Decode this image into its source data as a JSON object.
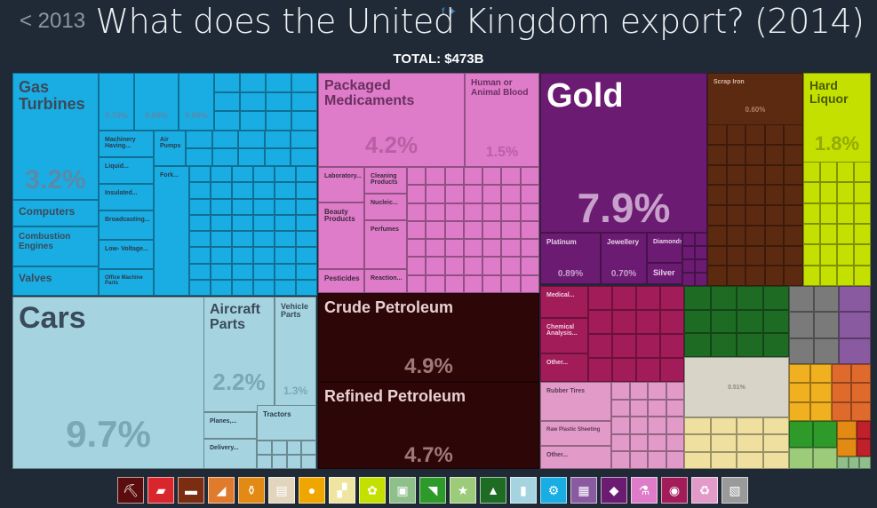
{
  "header": {
    "back_label": "< 2013",
    "title": "What does the United Kingdom export? (2014)",
    "total": "TOTAL: $473B"
  },
  "chart_data": {
    "type": "treemap",
    "total": "$473B",
    "tiles": [
      {
        "label": "Gas Turbines",
        "value": "3.2%",
        "color": "#1aade3"
      },
      {
        "label": "Computers",
        "value": "",
        "color": "#1aade3"
      },
      {
        "label": "Combustion Engines",
        "value": "",
        "color": "#1aade3"
      },
      {
        "label": "Valves",
        "value": "",
        "color": "#1aade3"
      },
      {
        "label": "Machinery Having...",
        "value": "",
        "color": "#1aade3"
      },
      {
        "label": "Air Pumps",
        "value": "",
        "color": "#1aade3"
      },
      {
        "label": "Liquid...",
        "value": "",
        "color": "#1aade3"
      },
      {
        "label": "Insulated...",
        "value": "",
        "color": "#1aade3"
      },
      {
        "label": "Broadcasting...",
        "value": "",
        "color": "#1aade3"
      },
      {
        "label": "Fork...",
        "value": "",
        "color": "#1aade3"
      },
      {
        "label": "Low- Voltage...",
        "value": "",
        "color": "#1aade3"
      },
      {
        "label": "Office Machine Parts",
        "value": "",
        "color": "#1aade3"
      },
      {
        "label": "",
        "value": "0.70%",
        "color": "#1aade3"
      },
      {
        "label": "",
        "value": "0.65%",
        "color": "#1aade3"
      },
      {
        "label": "",
        "value": "0.59%",
        "color": "#1aade3"
      },
      {
        "label": "Cars",
        "value": "9.7%",
        "color": "#a5d4e0"
      },
      {
        "label": "Aircraft Parts",
        "value": "2.2%",
        "color": "#a5d4e0"
      },
      {
        "label": "Vehicle Parts",
        "value": "1.3%",
        "color": "#a5d4e0"
      },
      {
        "label": "Planes,...",
        "value": "",
        "color": "#a5d4e0"
      },
      {
        "label": "Tractors",
        "value": "",
        "color": "#a5d4e0"
      },
      {
        "label": "Delivery...",
        "value": "",
        "color": "#a5d4e0"
      },
      {
        "label": "Packaged Medicaments",
        "value": "4.2%",
        "color": "#df7cca"
      },
      {
        "label": "Human or Animal Blood",
        "value": "1.5%",
        "color": "#df7cca"
      },
      {
        "label": "Laboratory...",
        "value": "",
        "color": "#df7cca"
      },
      {
        "label": "Cleaning Products",
        "value": "",
        "color": "#df7cca"
      },
      {
        "label": "Beauty Products",
        "value": "",
        "color": "#df7cca"
      },
      {
        "label": "Nucleic...",
        "value": "",
        "color": "#df7cca"
      },
      {
        "label": "Perfumes",
        "value": "",
        "color": "#df7cca"
      },
      {
        "label": "Pesticides",
        "value": "",
        "color": "#df7cca"
      },
      {
        "label": "Reaction...",
        "value": "",
        "color": "#df7cca"
      },
      {
        "label": "Gold",
        "value": "7.9%",
        "color": "#6b1c72"
      },
      {
        "label": "Platinum",
        "value": "0.89%",
        "color": "#6b1c72"
      },
      {
        "label": "Jewellery",
        "value": "0.70%",
        "color": "#6b1c72"
      },
      {
        "label": "Diamonds",
        "value": "",
        "color": "#6b1c72"
      },
      {
        "label": "Silver",
        "value": "",
        "color": "#6b1c72"
      },
      {
        "label": "Scrap Iron",
        "value": "0.60%",
        "color": "#5c2a10"
      },
      {
        "label": "Hard Liquor",
        "value": "1.8%",
        "color": "#c4e000"
      },
      {
        "label": "Crude Petroleum",
        "value": "4.9%",
        "color": "#2d0608"
      },
      {
        "label": "Refined Petroleum",
        "value": "4.7%",
        "color": "#2d0608"
      },
      {
        "label": "Medical...",
        "value": "",
        "color": "#a31c5a"
      },
      {
        "label": "Chemical Analysis...",
        "value": "",
        "color": "#a31c5a"
      },
      {
        "label": "Other...",
        "value": "",
        "color": "#a31c5a"
      },
      {
        "label": "Rubber Tires",
        "value": "",
        "color": "#e29bc8"
      },
      {
        "label": "Raw Plastic Sheeting",
        "value": "",
        "color": "#e29bc8"
      },
      {
        "label": "Other...",
        "value": "",
        "color": "#e29bc8"
      },
      {
        "label": "",
        "value": "0.51%",
        "color": "#d9d4c8"
      }
    ]
  },
  "legend": [
    {
      "name": "mineral-products",
      "color": "#5b0d0d",
      "glyph": "⛏"
    },
    {
      "name": "metals",
      "color": "#d9262c",
      "glyph": "▰"
    },
    {
      "name": "stone",
      "color": "#7a2d10",
      "glyph": "▬"
    },
    {
      "name": "animal-hides",
      "color": "#e07a2c",
      "glyph": "◢"
    },
    {
      "name": "foodstuffs",
      "color": "#e28a14",
      "glyph": "⚱"
    },
    {
      "name": "paper-goods",
      "color": "#e3d5bd",
      "glyph": "▤"
    },
    {
      "name": "vegetable-products",
      "color": "#f0a600",
      "glyph": "●"
    },
    {
      "name": "animal-products",
      "color": "#f0e5a0",
      "glyph": "▞"
    },
    {
      "name": "plant-products",
      "color": "#c4e000",
      "glyph": "✿"
    },
    {
      "name": "textiles-plastics",
      "color": "#8fbf8a",
      "glyph": "▣"
    },
    {
      "name": "footwear",
      "color": "#2e9a2a",
      "glyph": "◥"
    },
    {
      "name": "misc",
      "color": "#9ccc7a",
      "glyph": "★"
    },
    {
      "name": "textiles",
      "color": "#1e6b24",
      "glyph": "▲"
    },
    {
      "name": "transportation",
      "color": "#a5d4e0",
      "glyph": "▮"
    },
    {
      "name": "machines",
      "color": "#1aade3",
      "glyph": "⚙"
    },
    {
      "name": "arts",
      "color": "#8a5aa0",
      "glyph": "▦"
    },
    {
      "name": "precious-metals",
      "color": "#6b1c72",
      "glyph": "◆"
    },
    {
      "name": "chemical-products",
      "color": "#df7cca",
      "glyph": "⚗"
    },
    {
      "name": "instruments",
      "color": "#a31c5a",
      "glyph": "◉"
    },
    {
      "name": "plastics-rubbers",
      "color": "#e29bc8",
      "glyph": "♻"
    },
    {
      "name": "unspecified",
      "color": "#9a9a9a",
      "glyph": "▧"
    }
  ]
}
